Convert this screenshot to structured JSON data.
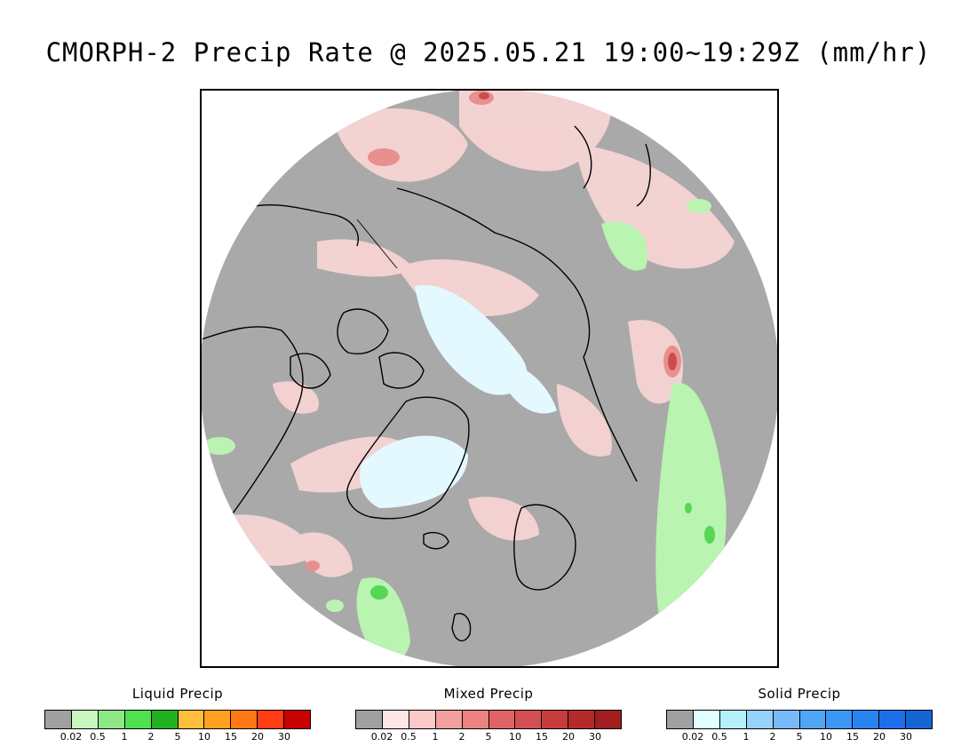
{
  "title": "CMORPH-2 Precip Rate @ 2025.05.21 19:00~19:29Z (mm/hr)",
  "map": {
    "projection": "north-polar-stereographic",
    "colors": {
      "background": "#a9a9a9",
      "coastline": "#000000",
      "liquid_light": "#b6f5b0",
      "liquid_mid": "#66dd66",
      "mixed_light": "#fadada",
      "mixed_mid": "#f0a6a6",
      "mixed_dark": "#cc4c4c",
      "solid_light": "#dff7ff"
    }
  },
  "legends": [
    {
      "title": "Liquid Precip",
      "colors": [
        "#a0a0a0",
        "#c8f7c0",
        "#8fe886",
        "#50e050",
        "#20b020",
        "#ffbe3c",
        "#ffa01e",
        "#ff7814",
        "#ff3c14",
        "#c80000"
      ],
      "ticks": [
        "0.02",
        "0.5",
        "1",
        "2",
        "5",
        "10",
        "15",
        "20",
        "30"
      ]
    },
    {
      "title": "Mixed Precip",
      "colors": [
        "#a0a0a0",
        "#ffe6e6",
        "#fcc8c8",
        "#f5a0a0",
        "#ec8282",
        "#e06464",
        "#d45050",
        "#c63c3c",
        "#b42a2a",
        "#a01e1e"
      ],
      "ticks": [
        "0.02",
        "0.5",
        "1",
        "2",
        "5",
        "10",
        "15",
        "20",
        "30"
      ]
    },
    {
      "title": "Solid Precip",
      "colors": [
        "#a0a0a0",
        "#e0ffff",
        "#b4f0fa",
        "#96d2fa",
        "#78b9fa",
        "#50a5f5",
        "#3c96f5",
        "#2882f0",
        "#1e6eeb",
        "#1464d2"
      ],
      "ticks": [
        "0.02",
        "0.5",
        "1",
        "2",
        "5",
        "10",
        "15",
        "20",
        "30"
      ]
    }
  ]
}
